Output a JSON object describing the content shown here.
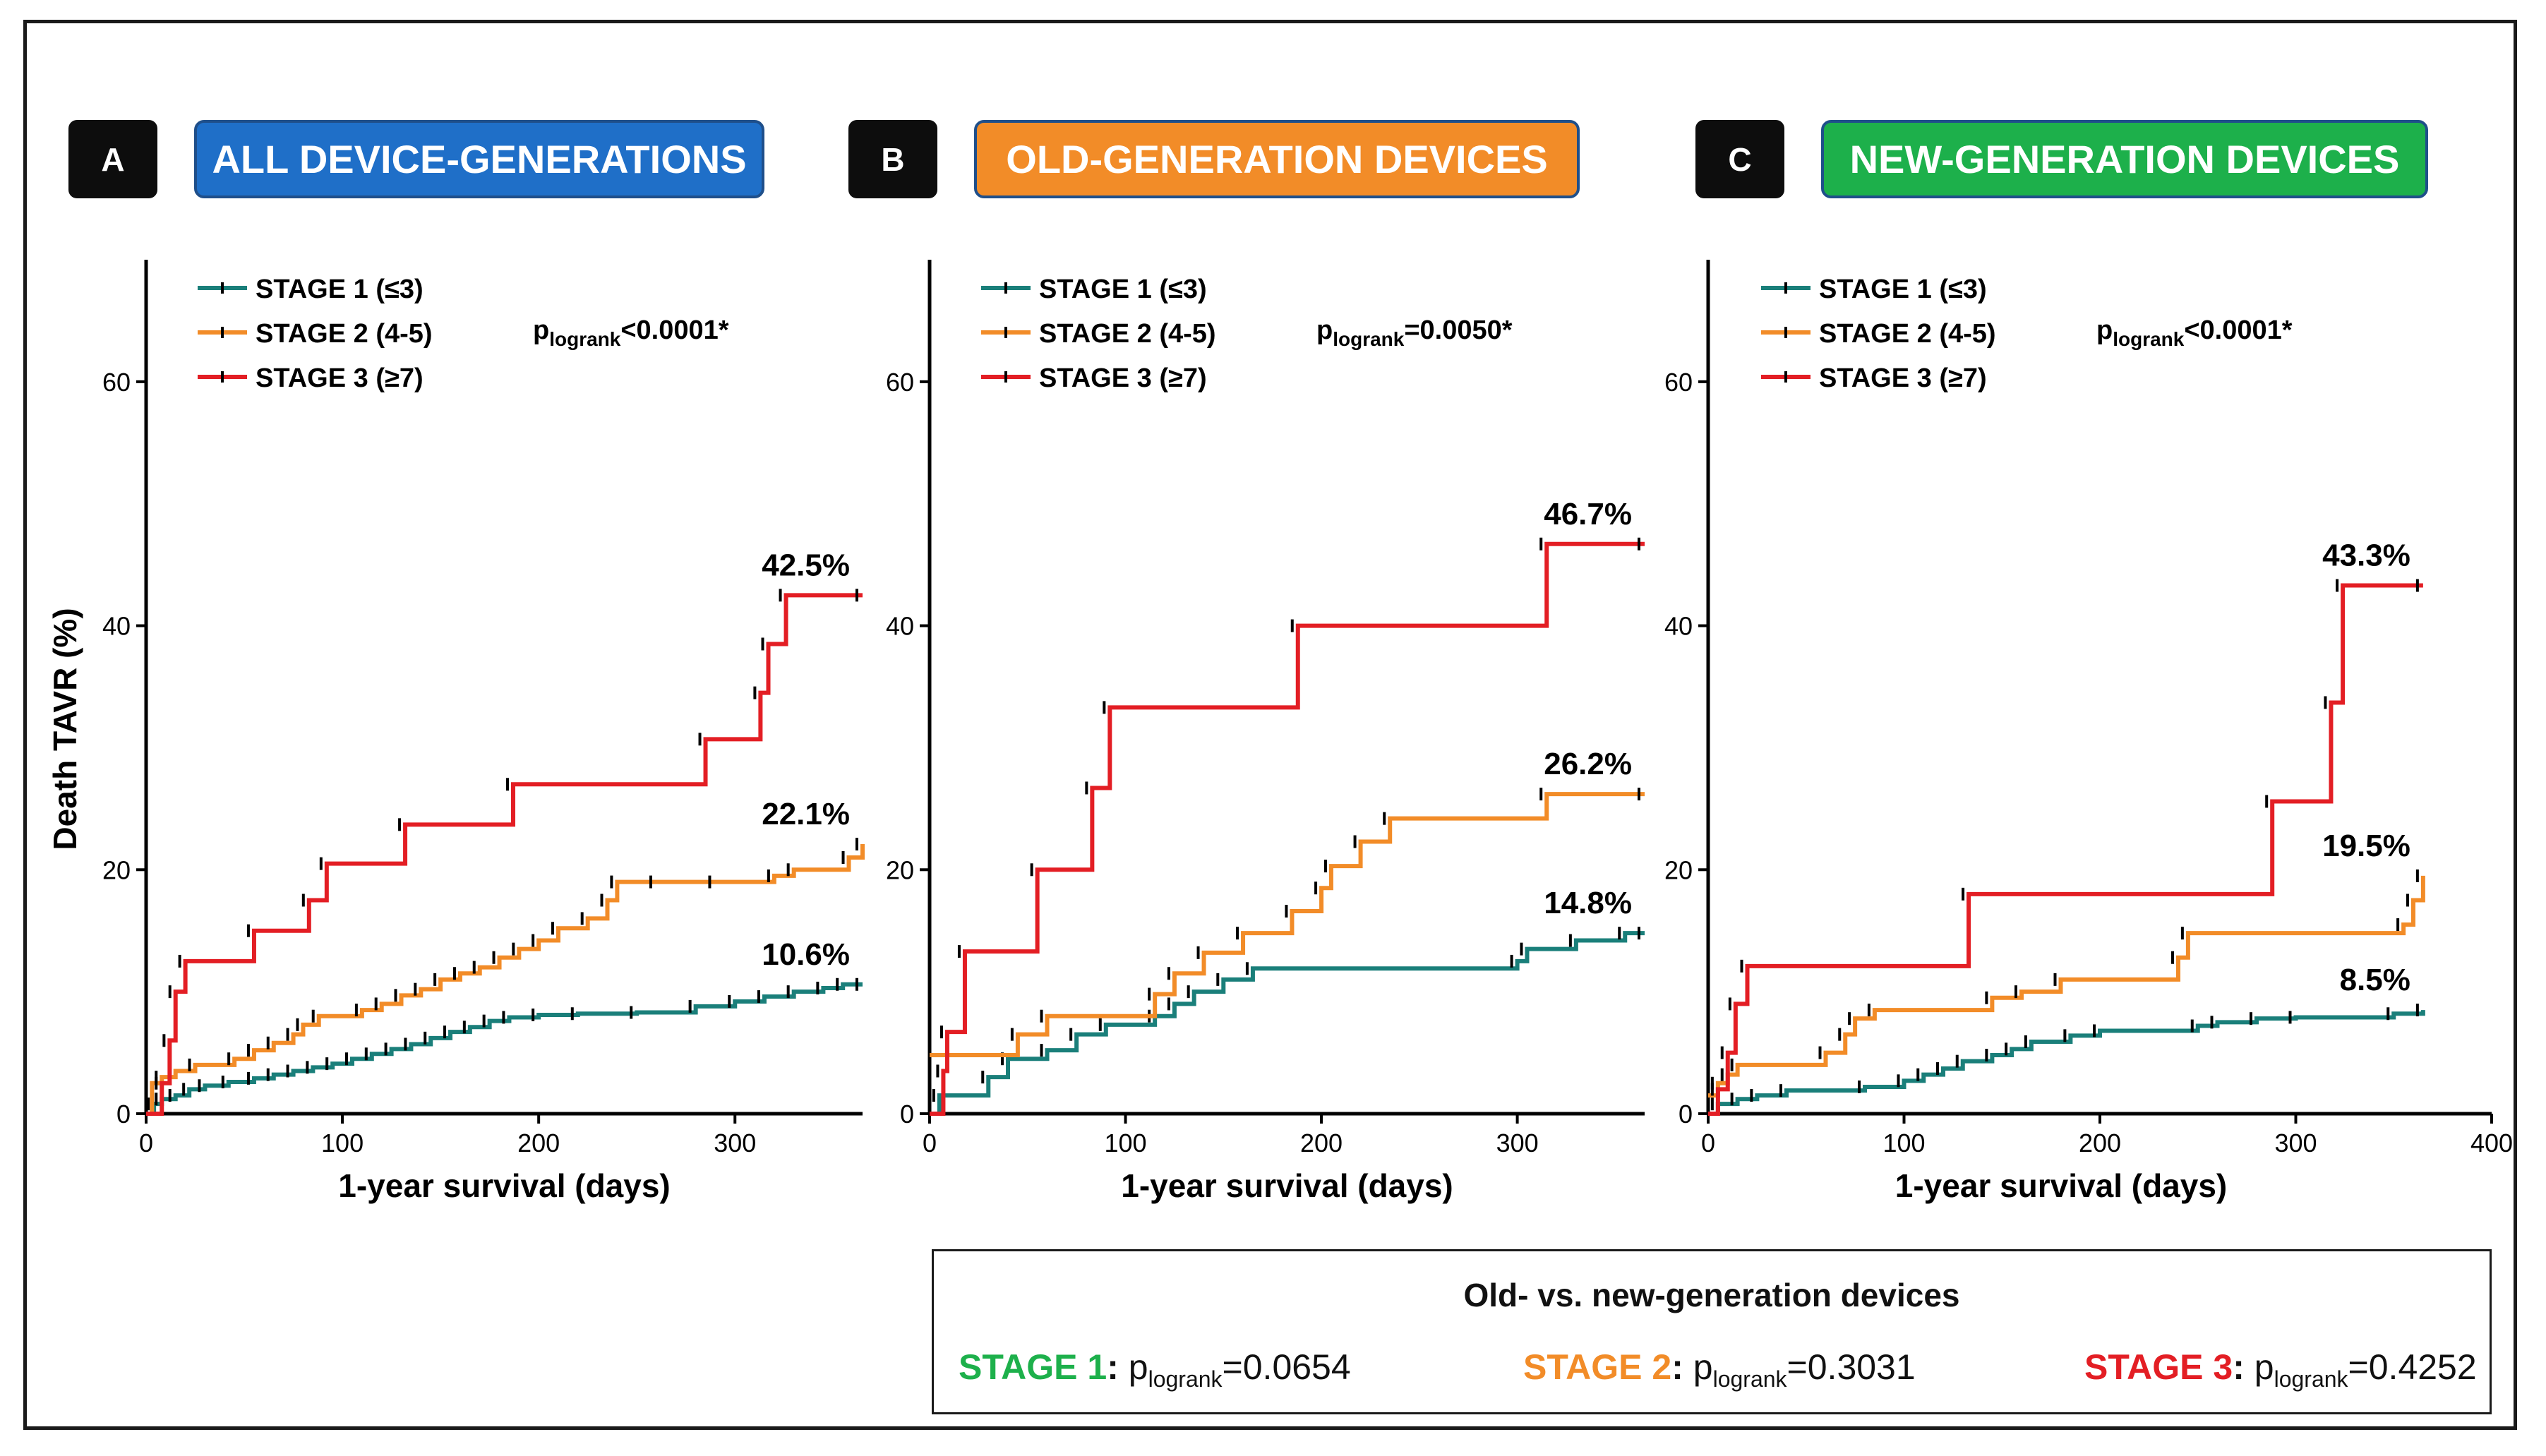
{
  "panels": [
    {
      "letter": "A",
      "title": "ALL DEVICE-GENERATIONS",
      "title_color": "#1f6fc8"
    },
    {
      "letter": "B",
      "title": "OLD-GENERATION DEVICES",
      "title_color": "#f28c28"
    },
    {
      "letter": "C",
      "title": "NEW-GENERATION DEVICES",
      "title_color": "#1db04b"
    }
  ],
  "chart_data": [
    {
      "type": "line",
      "panel": "A",
      "title": "ALL DEVICE-GENERATIONS",
      "xlabel": "1-year survival  (days)",
      "ylabel": "Death TAVR (%)",
      "xlim": [
        0,
        365
      ],
      "ylim": [
        0,
        70
      ],
      "xticks": [
        "0",
        "100",
        "200",
        "300"
      ],
      "yticks": [
        "0",
        "20",
        "40",
        "60"
      ],
      "pvalue": {
        "prefix": "p",
        "sub": "logrank",
        "value": "<0.0001*"
      },
      "series": [
        {
          "name": "STAGE 1 (≤3)",
          "color": "#1a7f7a",
          "end_label": "10.6%",
          "steps": [
            [
              0,
              0
            ],
            [
              4,
              0.8
            ],
            [
              8,
              1.2
            ],
            [
              15,
              1.5
            ],
            [
              22,
              2
            ],
            [
              30,
              2.3
            ],
            [
              42,
              2.6
            ],
            [
              55,
              2.9
            ],
            [
              65,
              3.2
            ],
            [
              75,
              3.5
            ],
            [
              85,
              3.8
            ],
            [
              95,
              4.1
            ],
            [
              105,
              4.5
            ],
            [
              115,
              4.9
            ],
            [
              125,
              5.3
            ],
            [
              135,
              5.7
            ],
            [
              145,
              6.2
            ],
            [
              155,
              6.7
            ],
            [
              165,
              7.1
            ],
            [
              175,
              7.6
            ],
            [
              185,
              7.9
            ],
            [
              200,
              8.1
            ],
            [
              220,
              8.2
            ],
            [
              250,
              8.3
            ],
            [
              280,
              8.8
            ],
            [
              300,
              9.2
            ],
            [
              315,
              9.6
            ],
            [
              330,
              10.0
            ],
            [
              345,
              10.3
            ],
            [
              355,
              10.6
            ],
            [
              365,
              10.6
            ]
          ]
        },
        {
          "name": "STAGE 2 (4-5)",
          "color": "#f28c28",
          "end_label": "22.1%",
          "steps": [
            [
              0,
              0
            ],
            [
              3,
              2.5
            ],
            [
              8,
              3
            ],
            [
              15,
              3.5
            ],
            [
              25,
              4
            ],
            [
              45,
              4.5
            ],
            [
              55,
              5.2
            ],
            [
              65,
              5.8
            ],
            [
              75,
              6.5
            ],
            [
              80,
              7.3
            ],
            [
              88,
              8
            ],
            [
              110,
              8.5
            ],
            [
              120,
              9
            ],
            [
              130,
              9.7
            ],
            [
              140,
              10.2
            ],
            [
              150,
              11
            ],
            [
              160,
              11.5
            ],
            [
              170,
              12
            ],
            [
              180,
              12.8
            ],
            [
              190,
              13.5
            ],
            [
              200,
              14.2
            ],
            [
              210,
              15.2
            ],
            [
              225,
              16
            ],
            [
              235,
              17.5
            ],
            [
              240,
              19
            ],
            [
              260,
              19
            ],
            [
              290,
              19
            ],
            [
              320,
              19.5
            ],
            [
              330,
              20
            ],
            [
              358,
              21
            ],
            [
              365,
              22.1
            ]
          ]
        },
        {
          "name": "STAGE 3 (≥7)",
          "color": "#e31e24",
          "end_label": "42.5%",
          "steps": [
            [
              0,
              0
            ],
            [
              8,
              2.5
            ],
            [
              12,
              6
            ],
            [
              15,
              10
            ],
            [
              20,
              12.5
            ],
            [
              55,
              15
            ],
            [
              83,
              17.5
            ],
            [
              92,
              20.5
            ],
            [
              132,
              23.7
            ],
            [
              187,
              27
            ],
            [
              285,
              30.7
            ],
            [
              313,
              34.5
            ],
            [
              317,
              38.5
            ],
            [
              326,
              42.5
            ],
            [
              365,
              42.5
            ]
          ]
        }
      ]
    },
    {
      "type": "line",
      "panel": "B",
      "title": "OLD-GENERATION DEVICES",
      "xlabel": "1-year survival  (days)",
      "ylabel": "",
      "xlim": [
        0,
        365
      ],
      "ylim": [
        0,
        70
      ],
      "xticks": [
        "0",
        "100",
        "200",
        "300"
      ],
      "yticks": [
        "0",
        "20",
        "40",
        "60"
      ],
      "pvalue": {
        "prefix": "p",
        "sub": "logrank",
        "value": "=0.0050*"
      },
      "series": [
        {
          "name": "STAGE 1 (≤3)",
          "color": "#1a7f7a",
          "end_label": "14.8%",
          "steps": [
            [
              0,
              0
            ],
            [
              5,
              1.5
            ],
            [
              30,
              3
            ],
            [
              40,
              4.5
            ],
            [
              60,
              5.2
            ],
            [
              75,
              6.5
            ],
            [
              90,
              7.3
            ],
            [
              115,
              8
            ],
            [
              125,
              9
            ],
            [
              135,
              10
            ],
            [
              150,
              11
            ],
            [
              165,
              11.9
            ],
            [
              300,
              12.5
            ],
            [
              305,
              13.5
            ],
            [
              330,
              14.2
            ],
            [
              355,
              14.8
            ],
            [
              365,
              14.8
            ]
          ]
        },
        {
          "name": "STAGE 2 (4-5)",
          "color": "#f28c28",
          "end_label": "26.2%",
          "steps": [
            [
              0,
              4.8
            ],
            [
              45,
              6.5
            ],
            [
              60,
              8
            ],
            [
              115,
              9.8
            ],
            [
              125,
              11.5
            ],
            [
              140,
              13.2
            ],
            [
              160,
              14.8
            ],
            [
              185,
              16.6
            ],
            [
              200,
              18.5
            ],
            [
              205,
              20.3
            ],
            [
              220,
              22.3
            ],
            [
              235,
              24.2
            ],
            [
              315,
              26.2
            ],
            [
              365,
              26.2
            ]
          ]
        },
        {
          "name": "STAGE 3 (≥7)",
          "color": "#e31e24",
          "end_label": "46.7%",
          "steps": [
            [
              0,
              0
            ],
            [
              7,
              3.5
            ],
            [
              9,
              6.7
            ],
            [
              18,
              13.3
            ],
            [
              55,
              20
            ],
            [
              83,
              26.7
            ],
            [
              92,
              33.3
            ],
            [
              188,
              40
            ],
            [
              315,
              46.7
            ],
            [
              365,
              46.7
            ]
          ]
        }
      ]
    },
    {
      "type": "line",
      "panel": "C",
      "title": "NEW-GENERATION DEVICES",
      "xlabel": "1-year survival  (days)",
      "ylabel": "",
      "xlim": [
        0,
        400
      ],
      "ylim": [
        0,
        70
      ],
      "xticks": [
        "0",
        "100",
        "200",
        "300",
        "400"
      ],
      "yticks": [
        "0",
        "20",
        "40",
        "60"
      ],
      "pvalue": {
        "prefix": "p",
        "sub": "logrank",
        "value": "<0.0001*"
      },
      "series": [
        {
          "name": "STAGE 1 (≤3)",
          "color": "#1a7f7a",
          "end_label": "8.5%",
          "steps": [
            [
              0,
              0
            ],
            [
              5,
              0.8
            ],
            [
              15,
              1.2
            ],
            [
              25,
              1.5
            ],
            [
              40,
              1.9
            ],
            [
              80,
              2.2
            ],
            [
              100,
              2.7
            ],
            [
              110,
              3.2
            ],
            [
              120,
              3.7
            ],
            [
              130,
              4.3
            ],
            [
              145,
              4.8
            ],
            [
              155,
              5.3
            ],
            [
              165,
              5.9
            ],
            [
              185,
              6.4
            ],
            [
              200,
              6.8
            ],
            [
              250,
              7.2
            ],
            [
              260,
              7.5
            ],
            [
              280,
              7.8
            ],
            [
              300,
              7.9
            ],
            [
              350,
              8.2
            ],
            [
              365,
              8.5
            ]
          ]
        },
        {
          "name": "STAGE 2 (4-5)",
          "color": "#f28c28",
          "end_label": "19.5%",
          "steps": [
            [
              0,
              1.5
            ],
            [
              5,
              2.5
            ],
            [
              10,
              3.2
            ],
            [
              15,
              4
            ],
            [
              60,
              5
            ],
            [
              70,
              6.5
            ],
            [
              75,
              7.8
            ],
            [
              85,
              8.5
            ],
            [
              145,
              9.5
            ],
            [
              160,
              10
            ],
            [
              180,
              11
            ],
            [
              240,
              12.8
            ],
            [
              245,
              14.8
            ],
            [
              355,
              15.5
            ],
            [
              360,
              17.5
            ],
            [
              365,
              19.5
            ]
          ]
        },
        {
          "name": "STAGE 3 (≥7)",
          "color": "#e31e24",
          "end_label": "43.3%",
          "steps": [
            [
              0,
              0
            ],
            [
              5,
              2
            ],
            [
              10,
              5
            ],
            [
              14,
              9
            ],
            [
              20,
              12.1
            ],
            [
              133,
              18
            ],
            [
              288,
              25.6
            ],
            [
              318,
              33.7
            ],
            [
              324,
              43.3
            ],
            [
              365,
              43.3
            ]
          ]
        }
      ]
    }
  ],
  "summary": {
    "heading": "Old- vs. new-generation devices",
    "items": [
      {
        "stage": "STAGE 1",
        "color": "#1db04b",
        "sep": ": ",
        "p": "p",
        "sub": "logrank",
        "value": "=0.0654"
      },
      {
        "stage": "STAGE 2",
        "color": "#f28c28",
        "sep": ": ",
        "p": "p",
        "sub": "logrank",
        "value": "=0.3031"
      },
      {
        "stage": "STAGE 3",
        "color": "#e31e24",
        "sep": ": ",
        "p": "p",
        "sub": "logrank",
        "value": "=0.4252"
      }
    ]
  }
}
